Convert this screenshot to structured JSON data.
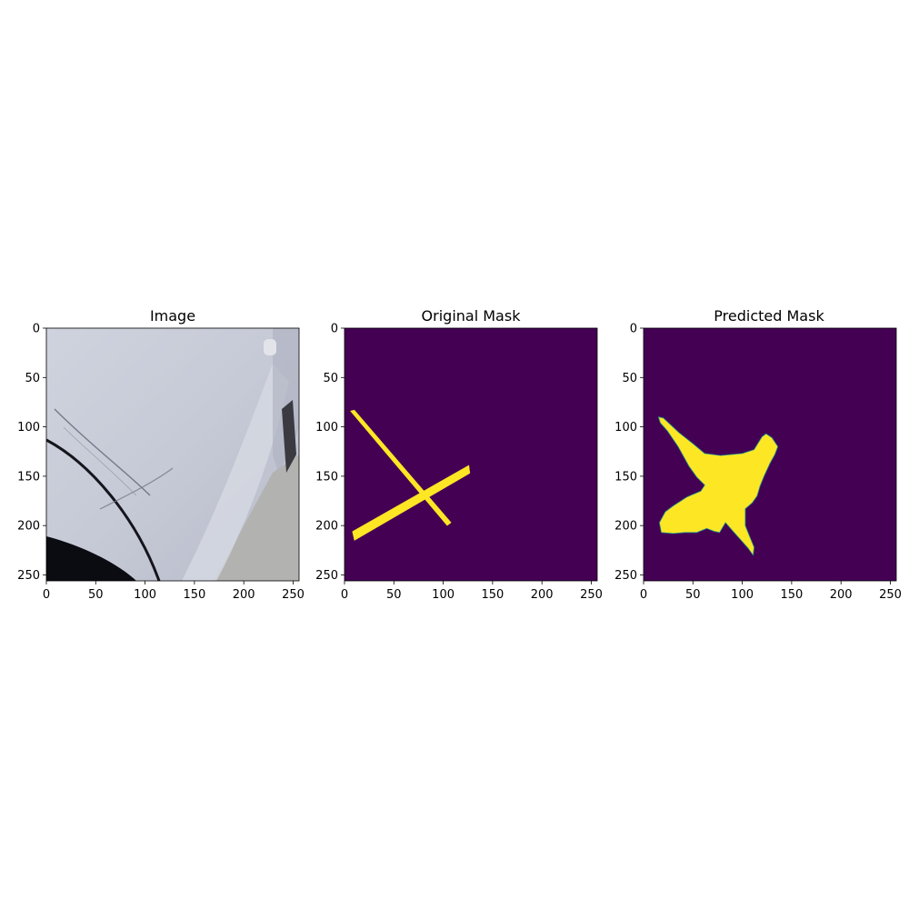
{
  "chart_data": [
    {
      "type": "image",
      "title": "Image",
      "xticks": [
        0,
        50,
        100,
        150,
        200,
        250
      ],
      "yticks": [
        0,
        50,
        100,
        150,
        200,
        250
      ],
      "xlim": [
        0,
        256
      ],
      "ylim": [
        256,
        0
      ],
      "content": "photo of white car body panel with scratches",
      "colors": {
        "panel": "#c8ccd8",
        "wheel_arch": "#0b0b12",
        "ground": "#b4b4b2"
      }
    },
    {
      "type": "heatmap",
      "title": "Original Mask",
      "xticks": [
        0,
        50,
        100,
        150,
        200,
        250
      ],
      "yticks": [
        0,
        50,
        100,
        150,
        200,
        250
      ],
      "xlim": [
        0,
        256
      ],
      "ylim": [
        256,
        0
      ],
      "colormap": "viridis",
      "colors": {
        "background": "#440154",
        "mask": "#fde725"
      },
      "mask_regions": [
        {
          "label": "stroke-1",
          "points": [
            [
              6,
              84
            ],
            [
              10,
              83
            ],
            [
              108,
              197
            ],
            [
              104,
              200
            ]
          ]
        },
        {
          "label": "stroke-2",
          "points": [
            [
              8,
              206
            ],
            [
              126,
              139
            ],
            [
              127,
              147
            ],
            [
              10,
              215
            ]
          ]
        }
      ]
    },
    {
      "type": "heatmap",
      "title": "Predicted Mask",
      "xticks": [
        0,
        50,
        100,
        150,
        200,
        250
      ],
      "yticks": [
        0,
        50,
        100,
        150,
        200,
        250
      ],
      "xlim": [
        0,
        256
      ],
      "ylim": [
        256,
        0
      ],
      "colormap": "viridis",
      "colors": {
        "background": "#440154",
        "mask": "#fde725",
        "edge": "#21918c"
      },
      "mask_regions": [
        {
          "label": "predicted-blob",
          "points": [
            [
              15,
              90
            ],
            [
              20,
              91
            ],
            [
              36,
              106
            ],
            [
              50,
              117
            ],
            [
              62,
              127
            ],
            [
              78,
              129
            ],
            [
              100,
              127
            ],
            [
              112,
              123
            ],
            [
              120,
              110
            ],
            [
              124,
              107
            ],
            [
              130,
              111
            ],
            [
              136,
              120
            ],
            [
              133,
              128
            ],
            [
              128,
              137
            ],
            [
              122,
              150
            ],
            [
              118,
              160
            ],
            [
              115,
              170
            ],
            [
              110,
              177
            ],
            [
              103,
              183
            ],
            [
              103,
              200
            ],
            [
              107,
              210
            ],
            [
              112,
              222
            ],
            [
              111,
              230
            ],
            [
              106,
              223
            ],
            [
              98,
              214
            ],
            [
              90,
              205
            ],
            [
              83,
              197
            ],
            [
              77,
              207
            ],
            [
              72,
              206
            ],
            [
              64,
              203
            ],
            [
              54,
              207
            ],
            [
              42,
              207
            ],
            [
              30,
              208
            ],
            [
              18,
              207
            ],
            [
              16,
              197
            ],
            [
              22,
              186
            ],
            [
              30,
              180
            ],
            [
              44,
              171
            ],
            [
              58,
              165
            ],
            [
              62,
              159
            ],
            [
              54,
              151
            ],
            [
              46,
              140
            ],
            [
              35,
              120
            ],
            [
              24,
              104
            ],
            [
              17,
              96
            ]
          ]
        }
      ]
    }
  ]
}
